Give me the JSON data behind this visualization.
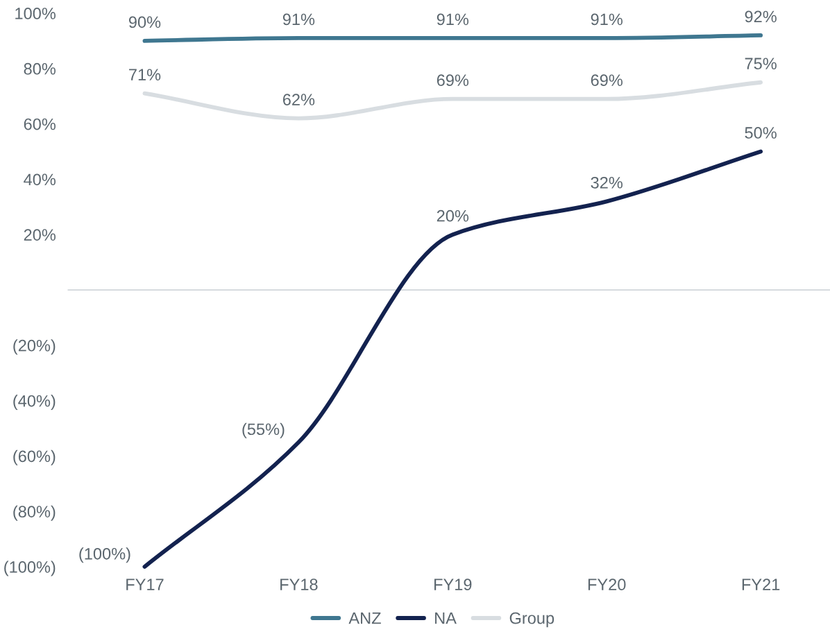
{
  "chart_data": {
    "type": "line",
    "categories": [
      "FY17",
      "FY18",
      "FY19",
      "FY20",
      "FY21"
    ],
    "series": [
      {
        "name": "ANZ",
        "color": "#3f7790",
        "values": [
          90,
          91,
          91,
          91,
          92
        ],
        "value_labels": [
          "90%",
          "91%",
          "91%",
          "91%",
          "92%"
        ]
      },
      {
        "name": "NA",
        "color": "#13224f",
        "values": [
          -100,
          -55,
          20,
          32,
          50
        ],
        "value_labels": [
          "(100%)",
          "(55%)",
          "20%",
          "32%",
          "50%"
        ]
      },
      {
        "name": "Group",
        "color": "#d8dde1",
        "values": [
          71,
          62,
          69,
          69,
          75
        ],
        "value_labels": [
          "71%",
          "62%",
          "69%",
          "69%",
          "75%"
        ]
      }
    ],
    "ylim": [
      -100,
      100
    ],
    "yticks": [
      {
        "value": -100,
        "label": "(100%)"
      },
      {
        "value": -80,
        "label": "(80%)"
      },
      {
        "value": -60,
        "label": "(60%)"
      },
      {
        "value": -40,
        "label": "(40%)"
      },
      {
        "value": -20,
        "label": "(20%)"
      },
      {
        "value": 20,
        "label": "20%"
      },
      {
        "value": 40,
        "label": "40%"
      },
      {
        "value": 60,
        "label": "60%"
      },
      {
        "value": 80,
        "label": "80%"
      },
      {
        "value": 100,
        "label": "100%"
      }
    ],
    "ref_lines": [
      {
        "axis": "y",
        "value": 0,
        "color": "#d6dbdf"
      }
    ],
    "grid": false,
    "legend": "bottom",
    "marker": "none",
    "line_style": "solid"
  }
}
